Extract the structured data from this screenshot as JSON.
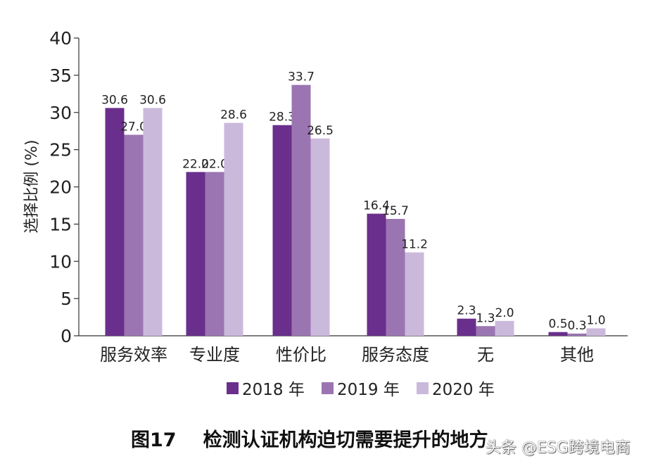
{
  "chart_data": {
    "type": "bar",
    "title": "图17　检测认证机构迫切需要提升的地方",
    "title_label": "图17",
    "title_text": "检测认证机构迫切需要提升的地方",
    "xlabel": "",
    "ylabel": "选择比例 (%)",
    "ylim": [
      0,
      40
    ],
    "yticks": [
      0,
      5,
      10,
      15,
      20,
      25,
      30,
      35,
      40
    ],
    "grid": false,
    "legend_position": "bottom",
    "categories": [
      "服务效率",
      "专业度",
      "性价比",
      "服务态度",
      "无",
      "其他"
    ],
    "series": [
      {
        "name": "2018 年",
        "color": "#6a2f8c",
        "values": [
          30.6,
          22.0,
          28.3,
          16.4,
          2.3,
          0.5
        ]
      },
      {
        "name": "2019 年",
        "color": "#9b75b2",
        "values": [
          27.0,
          22.0,
          33.7,
          15.7,
          1.3,
          0.3
        ]
      },
      {
        "name": "2020 年",
        "color": "#cbb9dc",
        "values": [
          30.6,
          28.6,
          26.5,
          11.2,
          2.0,
          1.0
        ]
      }
    ]
  },
  "watermark": "头条 @ESG跨境电商"
}
